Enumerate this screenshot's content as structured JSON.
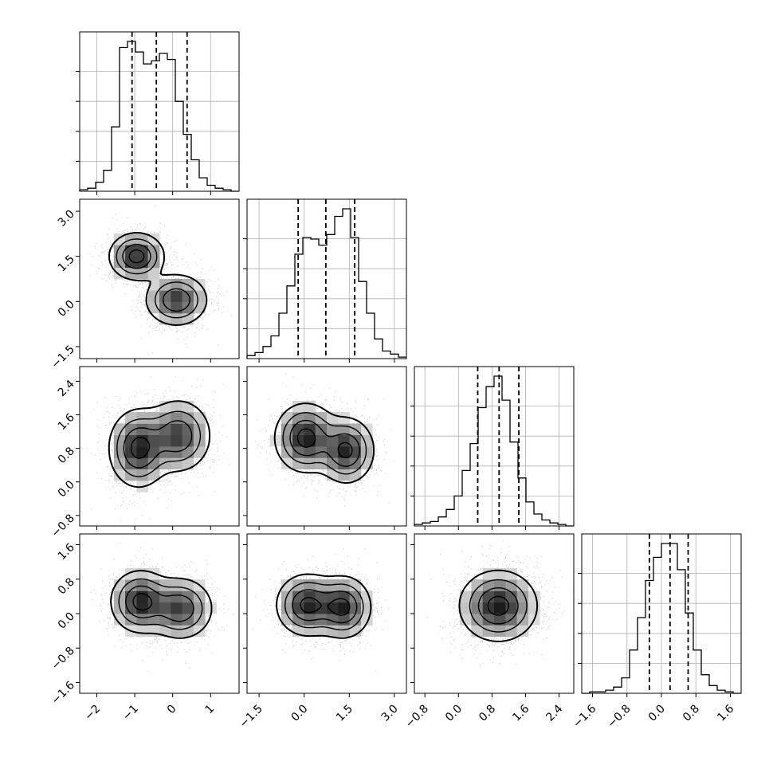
{
  "chart_data": {
    "type": "corner",
    "title": "",
    "grid": true,
    "n_params": 4,
    "params": [
      {
        "range": [
          -2.45,
          1.75
        ],
        "ticks": [
          -2,
          -1,
          0,
          1
        ],
        "tick_labels": [
          "−2",
          "−1",
          "0",
          "1"
        ]
      },
      {
        "range": [
          -1.9,
          3.4
        ],
        "ticks": [
          -1.5,
          0,
          1.5,
          3
        ],
        "tick_labels": [
          "−1.5",
          "0.0",
          "1.5",
          "3.0"
        ]
      },
      {
        "range": [
          -1.05,
          2.75
        ],
        "ticks": [
          -0.8,
          0,
          0.8,
          1.6,
          2.4
        ],
        "tick_labels": [
          "−0.8",
          "0.0",
          "0.8",
          "1.6",
          "2.4"
        ]
      },
      {
        "range": [
          -1.85,
          1.85
        ],
        "ticks": [
          -1.6,
          -0.8,
          0,
          0.8,
          1.6
        ],
        "tick_labels": [
          "−1.6",
          "−0.8",
          "0.0",
          "0.8",
          "1.6"
        ]
      }
    ],
    "histograms": [
      {
        "param": 0,
        "edges_start": -2.45,
        "bin_width": 0.21,
        "values": [
          0.01,
          0.02,
          0.06,
          0.14,
          0.43,
          0.96,
          1.0,
          0.93,
          0.85,
          0.87,
          0.92,
          0.88,
          0.6,
          0.38,
          0.21,
          0.09,
          0.04,
          0.02,
          0.01,
          0.0
        ],
        "quantiles": [
          -1.07,
          -0.43,
          0.38
        ]
      },
      {
        "param": 1,
        "edges_start": -1.9,
        "bin_width": 0.265,
        "values": [
          0.02,
          0.04,
          0.08,
          0.15,
          0.3,
          0.48,
          0.69,
          0.8,
          0.79,
          0.75,
          0.82,
          0.94,
          0.99,
          0.8,
          0.51,
          0.3,
          0.13,
          0.05,
          0.03,
          0.01
        ],
        "quantiles": [
          -0.2,
          0.72,
          1.68
        ]
      },
      {
        "param": 2,
        "edges_start": -1.05,
        "bin_width": 0.19,
        "values": [
          0.01,
          0.02,
          0.03,
          0.06,
          0.11,
          0.2,
          0.37,
          0.55,
          0.79,
          0.93,
          1.0,
          0.84,
          0.56,
          0.32,
          0.16,
          0.08,
          0.04,
          0.02,
          0.01,
          0.0
        ],
        "quantiles": [
          0.46,
          0.97,
          1.44
        ]
      },
      {
        "param": 3,
        "edges_start": -1.85,
        "bin_width": 0.185,
        "values": [
          0.0,
          0.01,
          0.01,
          0.02,
          0.04,
          0.1,
          0.28,
          0.49,
          0.73,
          0.88,
          0.97,
          0.97,
          0.8,
          0.52,
          0.28,
          0.12,
          0.05,
          0.02,
          0.01,
          0.0
        ],
        "quantiles": [
          -0.28,
          0.2,
          0.62
        ]
      }
    ],
    "joint_modes": [
      {
        "x_param": 0,
        "y_param": 1,
        "modes": [
          {
            "x": -0.95,
            "y": 1.5,
            "sx": 0.35,
            "sy": 0.38,
            "w": 1.0
          },
          {
            "x": 0.1,
            "y": 0.05,
            "sx": 0.4,
            "sy": 0.42,
            "w": 0.85
          }
        ]
      },
      {
        "x_param": 0,
        "y_param": 2,
        "modes": [
          {
            "x": -0.9,
            "y": 0.8,
            "sx": 0.38,
            "sy": 0.45,
            "w": 1.0
          },
          {
            "x": 0.15,
            "y": 1.1,
            "sx": 0.42,
            "sy": 0.42,
            "w": 0.85
          }
        ]
      },
      {
        "x_param": 1,
        "y_param": 2,
        "modes": [
          {
            "x": 0.05,
            "y": 1.05,
            "sx": 0.5,
            "sy": 0.4,
            "w": 1.0
          },
          {
            "x": 1.4,
            "y": 0.75,
            "sx": 0.45,
            "sy": 0.38,
            "w": 0.95
          }
        ]
      },
      {
        "x_param": 0,
        "y_param": 3,
        "modes": [
          {
            "x": -0.85,
            "y": 0.28,
            "sx": 0.38,
            "sy": 0.35,
            "w": 1.0
          },
          {
            "x": 0.2,
            "y": 0.12,
            "sx": 0.42,
            "sy": 0.35,
            "w": 0.85
          }
        ]
      },
      {
        "x_param": 1,
        "y_param": 3,
        "modes": [
          {
            "x": 0.1,
            "y": 0.2,
            "sx": 0.5,
            "sy": 0.35,
            "w": 1.0
          },
          {
            "x": 1.3,
            "y": 0.15,
            "sx": 0.45,
            "sy": 0.35,
            "w": 1.0
          }
        ]
      },
      {
        "x_param": 2,
        "y_param": 3,
        "modes": [
          {
            "x": 0.95,
            "y": 0.18,
            "sx": 0.45,
            "sy": 0.4,
            "w": 1.0
          }
        ]
      }
    ],
    "contour_levels": [
      0.12,
      0.32,
      0.58,
      0.86
    ]
  }
}
